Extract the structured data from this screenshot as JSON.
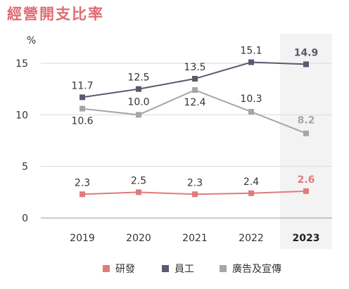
{
  "title": "經營開支比率",
  "chart_data": {
    "type": "line",
    "title": "經營開支比率",
    "ylabel": "%",
    "ylim": [
      0,
      15
    ],
    "yticks": [
      0,
      5,
      10,
      15
    ],
    "categories": [
      "2019",
      "2020",
      "2021",
      "2022",
      "2023"
    ],
    "highlight_category": "2023",
    "series": [
      {
        "name": "研發",
        "values": [
          2.3,
          2.5,
          2.3,
          2.4,
          2.6
        ],
        "color": "#e07b7b"
      },
      {
        "name": "員工",
        "values": [
          11.7,
          12.5,
          13.5,
          15.1,
          14.9
        ],
        "color": "#5a5a6e"
      },
      {
        "name": "廣告及宣傳",
        "values": [
          10.6,
          10.0,
          12.4,
          10.3,
          8.2
        ],
        "color": "#a6a6a6"
      }
    ]
  }
}
